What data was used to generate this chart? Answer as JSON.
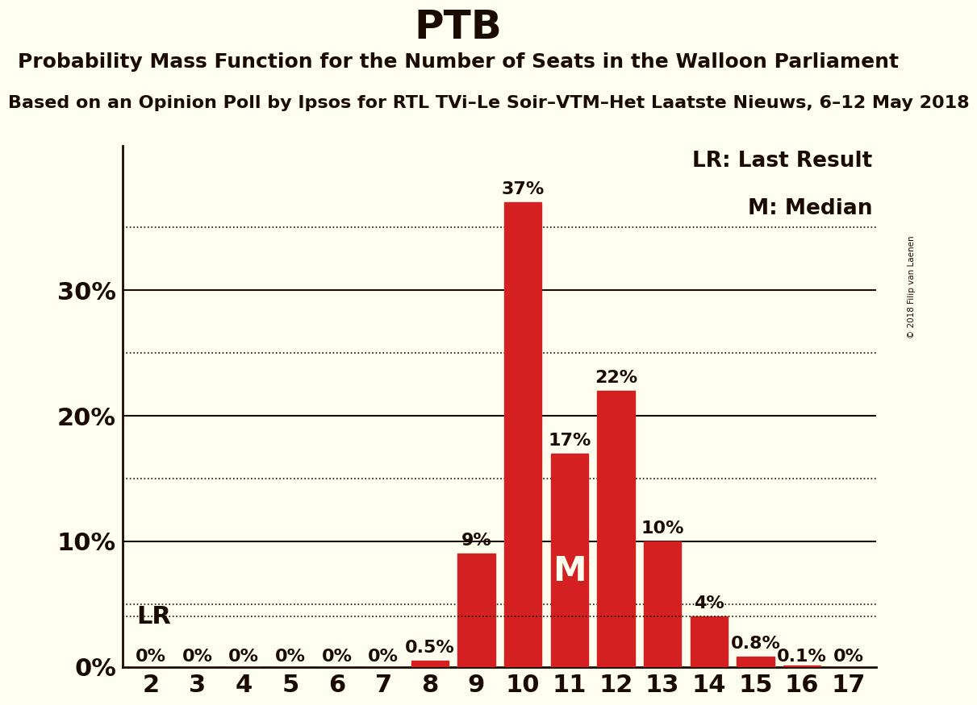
{
  "title": "PTB",
  "subtitle": "Probability Mass Function for the Number of Seats in the Walloon Parliament",
  "source_line": "Based on an Opinion Poll by Ipsos for RTL TVi–Le Soir–VTM–Het Laatste Nieuws, 6–12 May 2018",
  "copyright": "© 2018 Filip van Laenen",
  "seats": [
    2,
    3,
    4,
    5,
    6,
    7,
    8,
    9,
    10,
    11,
    12,
    13,
    14,
    15,
    16,
    17
  ],
  "probabilities": [
    0.0,
    0.0,
    0.0,
    0.0,
    0.0,
    0.0,
    0.005,
    0.09,
    0.37,
    0.17,
    0.22,
    0.1,
    0.04,
    0.008,
    0.001,
    0.0
  ],
  "bar_color": "#D42020",
  "background_color": "#FFFFF0",
  "text_color": "#1A0A00",
  "lr_value": 0.04,
  "median_seat": 11,
  "yticks": [
    0.0,
    0.1,
    0.2,
    0.3
  ],
  "ytick_labels": [
    "0%",
    "10%",
    "20%",
    "30%"
  ],
  "dotted_grid_values": [
    0.05,
    0.15,
    0.25,
    0.35
  ],
  "solid_grid_values": [
    0.1,
    0.2,
    0.3
  ],
  "bar_labels": [
    "0%",
    "0%",
    "0%",
    "0%",
    "0%",
    "0%",
    "0.5%",
    "9%",
    "37%",
    "17%",
    "22%",
    "10%",
    "4%",
    "0.8%",
    "0.1%",
    "0%"
  ],
  "title_fontsize": 36,
  "subtitle_fontsize": 18,
  "source_fontsize": 16,
  "axis_label_fontsize": 22,
  "bar_label_fontsize": 16,
  "legend_fontsize": 19,
  "yaxis_label_fontsize": 22
}
